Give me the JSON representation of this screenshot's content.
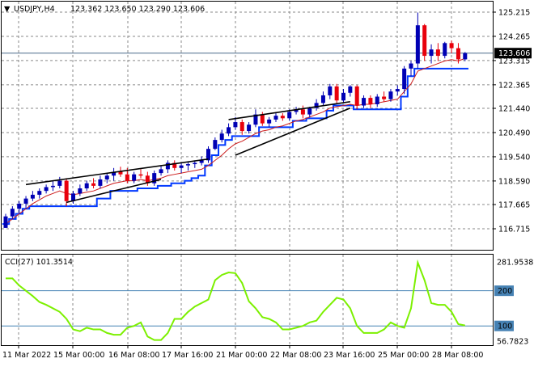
{
  "chart_data": {
    "type": "candlestick",
    "header": {
      "symbol_timeframe": "USDJPY,H4",
      "ohlc": "123.362 123.650 123.290 123.606"
    },
    "current_price_label": "123.606",
    "price_axis": {
      "ticks": [
        "125.215",
        "124.265",
        "123.315",
        "122.365",
        "121.440",
        "120.490",
        "119.540",
        "118.590",
        "117.665",
        "116.715"
      ],
      "tick_values": [
        125.215,
        124.265,
        123.315,
        122.365,
        121.44,
        120.49,
        119.54,
        118.59,
        117.665,
        116.715
      ],
      "range": [
        116.715,
        125.215
      ]
    },
    "time_axis": {
      "labels": [
        "11 Mar 2022",
        "15 Mar 00:00",
        "16 Mar 08:00",
        "17 Mar 16:00",
        "21 Mar 00:00",
        "22 Mar 08:00",
        "23 Mar 16:00",
        "25 Mar 00:00",
        "28 Mar 08:00"
      ]
    },
    "candles": [
      {
        "o": 116.75,
        "h": 117.3,
        "l": 116.75,
        "c": 117.2
      },
      {
        "o": 117.2,
        "h": 117.6,
        "l": 117.1,
        "c": 117.5
      },
      {
        "o": 117.5,
        "h": 117.8,
        "l": 117.3,
        "c": 117.7
      },
      {
        "o": 117.7,
        "h": 118.0,
        "l": 117.5,
        "c": 117.9
      },
      {
        "o": 117.9,
        "h": 118.2,
        "l": 117.8,
        "c": 118.05
      },
      {
        "o": 118.05,
        "h": 118.3,
        "l": 117.9,
        "c": 118.2
      },
      {
        "o": 118.2,
        "h": 118.45,
        "l": 118.1,
        "c": 118.35
      },
      {
        "o": 118.35,
        "h": 118.6,
        "l": 118.2,
        "c": 118.4
      },
      {
        "o": 118.4,
        "h": 118.75,
        "l": 118.3,
        "c": 118.6
      },
      {
        "o": 118.6,
        "h": 118.7,
        "l": 117.6,
        "c": 117.8
      },
      {
        "o": 117.8,
        "h": 118.2,
        "l": 117.7,
        "c": 118.1
      },
      {
        "o": 118.1,
        "h": 118.45,
        "l": 118.0,
        "c": 118.3
      },
      {
        "o": 118.3,
        "h": 118.6,
        "l": 118.2,
        "c": 118.5
      },
      {
        "o": 118.5,
        "h": 118.7,
        "l": 118.3,
        "c": 118.4
      },
      {
        "o": 118.4,
        "h": 118.8,
        "l": 118.3,
        "c": 118.65
      },
      {
        "o": 118.65,
        "h": 118.9,
        "l": 118.5,
        "c": 118.8
      },
      {
        "o": 118.8,
        "h": 119.1,
        "l": 118.6,
        "c": 118.95
      },
      {
        "o": 118.95,
        "h": 119.15,
        "l": 118.75,
        "c": 118.85
      },
      {
        "o": 118.85,
        "h": 119.1,
        "l": 118.5,
        "c": 118.6
      },
      {
        "o": 118.6,
        "h": 118.95,
        "l": 118.5,
        "c": 118.85
      },
      {
        "o": 118.85,
        "h": 119.05,
        "l": 118.7,
        "c": 118.8
      },
      {
        "o": 118.8,
        "h": 118.95,
        "l": 118.4,
        "c": 118.5
      },
      {
        "o": 118.5,
        "h": 119.0,
        "l": 118.4,
        "c": 118.9
      },
      {
        "o": 118.9,
        "h": 119.2,
        "l": 118.8,
        "c": 119.05
      },
      {
        "o": 119.05,
        "h": 119.4,
        "l": 118.9,
        "c": 119.3
      },
      {
        "o": 119.3,
        "h": 119.4,
        "l": 119.0,
        "c": 119.1
      },
      {
        "o": 119.1,
        "h": 119.3,
        "l": 118.9,
        "c": 119.2
      },
      {
        "o": 119.2,
        "h": 119.35,
        "l": 119.0,
        "c": 119.25
      },
      {
        "o": 119.25,
        "h": 119.4,
        "l": 119.1,
        "c": 119.3
      },
      {
        "o": 119.3,
        "h": 119.55,
        "l": 119.2,
        "c": 119.4
      },
      {
        "o": 119.4,
        "h": 119.95,
        "l": 119.3,
        "c": 119.85
      },
      {
        "o": 119.85,
        "h": 120.3,
        "l": 119.8,
        "c": 120.2
      },
      {
        "o": 120.2,
        "h": 120.6,
        "l": 120.1,
        "c": 120.45
      },
      {
        "o": 120.45,
        "h": 120.85,
        "l": 120.35,
        "c": 120.7
      },
      {
        "o": 120.7,
        "h": 121.1,
        "l": 120.6,
        "c": 120.9
      },
      {
        "o": 120.9,
        "h": 121.0,
        "l": 120.4,
        "c": 120.55
      },
      {
        "o": 120.55,
        "h": 120.9,
        "l": 120.45,
        "c": 120.8
      },
      {
        "o": 120.8,
        "h": 121.4,
        "l": 120.7,
        "c": 121.2
      },
      {
        "o": 121.2,
        "h": 121.3,
        "l": 120.75,
        "c": 120.85
      },
      {
        "o": 120.85,
        "h": 121.1,
        "l": 120.7,
        "c": 121.0
      },
      {
        "o": 121.0,
        "h": 121.3,
        "l": 120.9,
        "c": 121.15
      },
      {
        "o": 121.15,
        "h": 121.25,
        "l": 120.95,
        "c": 121.05
      },
      {
        "o": 121.05,
        "h": 121.4,
        "l": 120.95,
        "c": 121.3
      },
      {
        "o": 121.3,
        "h": 121.5,
        "l": 121.2,
        "c": 121.4
      },
      {
        "o": 121.4,
        "h": 121.55,
        "l": 121.05,
        "c": 121.2
      },
      {
        "o": 121.2,
        "h": 121.5,
        "l": 121.1,
        "c": 121.45
      },
      {
        "o": 121.45,
        "h": 121.8,
        "l": 121.35,
        "c": 121.65
      },
      {
        "o": 121.65,
        "h": 122.1,
        "l": 121.55,
        "c": 121.95
      },
      {
        "o": 121.95,
        "h": 122.4,
        "l": 121.8,
        "c": 122.3
      },
      {
        "o": 122.3,
        "h": 122.4,
        "l": 121.65,
        "c": 121.75
      },
      {
        "o": 121.75,
        "h": 122.2,
        "l": 121.65,
        "c": 122.05
      },
      {
        "o": 122.05,
        "h": 122.35,
        "l": 121.9,
        "c": 122.3
      },
      {
        "o": 122.3,
        "h": 122.35,
        "l": 121.4,
        "c": 121.55
      },
      {
        "o": 121.55,
        "h": 121.95,
        "l": 121.45,
        "c": 121.85
      },
      {
        "o": 121.85,
        "h": 121.95,
        "l": 121.45,
        "c": 121.6
      },
      {
        "o": 121.6,
        "h": 122.0,
        "l": 121.5,
        "c": 121.9
      },
      {
        "o": 121.9,
        "h": 122.1,
        "l": 121.7,
        "c": 121.8
      },
      {
        "o": 121.8,
        "h": 122.2,
        "l": 121.7,
        "c": 122.1
      },
      {
        "o": 122.1,
        "h": 122.35,
        "l": 121.95,
        "c": 122.2
      },
      {
        "o": 122.2,
        "h": 123.1,
        "l": 122.0,
        "c": 123.0
      },
      {
        "o": 123.0,
        "h": 123.3,
        "l": 122.7,
        "c": 123.2
      },
      {
        "o": 123.2,
        "h": 125.2,
        "l": 123.0,
        "c": 124.7
      },
      {
        "o": 124.7,
        "h": 124.75,
        "l": 123.3,
        "c": 123.5
      },
      {
        "o": 123.5,
        "h": 123.95,
        "l": 123.2,
        "c": 123.75
      },
      {
        "o": 123.75,
        "h": 124.0,
        "l": 123.3,
        "c": 123.5
      },
      {
        "o": 123.5,
        "h": 124.05,
        "l": 123.4,
        "c": 124.0
      },
      {
        "o": 124.0,
        "h": 124.1,
        "l": 123.6,
        "c": 123.8
      },
      {
        "o": 123.8,
        "h": 124.0,
        "l": 123.2,
        "c": 123.362
      },
      {
        "o": 123.362,
        "h": 123.65,
        "l": 123.29,
        "c": 123.606
      }
    ],
    "overlays": {
      "blue_channel_low": [
        116.9,
        117.1,
        117.3,
        117.5,
        117.6,
        117.6,
        117.6,
        117.6,
        117.6,
        117.6,
        117.6,
        117.6,
        117.6,
        117.6,
        117.9,
        117.9,
        118.2,
        118.2,
        118.2,
        118.2,
        118.3,
        118.3,
        118.3,
        118.4,
        118.4,
        118.5,
        118.5,
        118.6,
        118.7,
        118.8,
        119.2,
        119.6,
        120.0,
        120.2,
        120.35,
        120.35,
        120.35,
        120.35,
        120.7,
        120.7,
        120.7,
        120.7,
        120.7,
        120.95,
        120.95,
        121.05,
        121.05,
        121.05,
        121.35,
        121.55,
        121.55,
        121.55,
        121.4,
        121.4,
        121.4,
        121.4,
        121.4,
        121.4,
        121.4,
        121.9,
        122.7,
        123.0,
        123.0,
        123.0,
        123.0,
        123.0,
        123.0,
        123.0,
        123.0
      ],
      "red_ma": [
        116.9,
        117.1,
        117.3,
        117.5,
        117.7,
        117.85,
        118.0,
        118.1,
        118.2,
        118.1,
        118.05,
        118.1,
        118.15,
        118.2,
        118.3,
        118.4,
        118.5,
        118.55,
        118.6,
        118.6,
        118.65,
        118.6,
        118.65,
        118.7,
        118.8,
        118.85,
        118.9,
        118.95,
        119.0,
        119.05,
        119.2,
        119.4,
        119.6,
        119.85,
        120.05,
        120.15,
        120.3,
        120.45,
        120.55,
        120.6,
        120.7,
        120.75,
        120.85,
        120.95,
        121.0,
        121.1,
        121.2,
        121.3,
        121.45,
        121.5,
        121.55,
        121.6,
        121.55,
        121.6,
        121.6,
        121.65,
        121.7,
        121.75,
        121.8,
        122.1,
        122.4,
        122.9,
        123.0,
        123.1,
        123.2,
        123.3,
        123.35,
        123.3,
        123.4
      ]
    },
    "trendlines": [
      {
        "from": [
          3,
          118.45
        ],
        "to": [
          30,
          119.45
        ]
      },
      {
        "from": [
          9,
          117.75
        ],
        "to": [
          23,
          118.65
        ]
      },
      {
        "from": [
          33,
          121.0
        ],
        "to": [
          51,
          121.7
        ]
      },
      {
        "from": [
          34,
          119.6
        ],
        "to": [
          51,
          121.45
        ]
      }
    ],
    "cci_panel": {
      "label": "CCI(27) 101.3514",
      "levels": [
        200,
        100
      ],
      "level_labels": [
        "200",
        "100"
      ],
      "axis_max_label": "281.9538",
      "axis_min_label": "56.7823",
      "range": [
        56.7823,
        281.9538
      ],
      "values": [
        235,
        235,
        215,
        200,
        185,
        168,
        160,
        150,
        140,
        120,
        90,
        85,
        95,
        90,
        90,
        80,
        75,
        75,
        95,
        100,
        110,
        70,
        60,
        60,
        80,
        120,
        120,
        140,
        155,
        165,
        175,
        230,
        245,
        252,
        250,
        222,
        170,
        150,
        125,
        120,
        110,
        90,
        90,
        95,
        100,
        110,
        115,
        140,
        160,
        180,
        175,
        150,
        100,
        80,
        80,
        80,
        90,
        110,
        100,
        95,
        150,
        280,
        230,
        165,
        160,
        160,
        140,
        105,
        101.35
      ]
    },
    "colors": {
      "bull": "#0000b4",
      "bear": "#e8000b",
      "channel": "#0038ff",
      "ma": "#cc1c1c",
      "cci": "#7cf000",
      "level": "#4682b4",
      "grid": "#8a8a8a"
    }
  }
}
